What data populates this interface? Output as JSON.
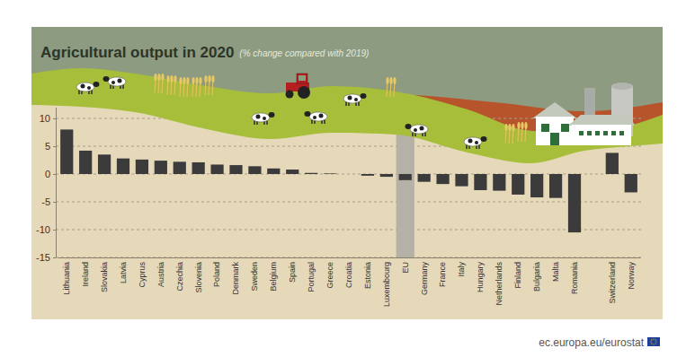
{
  "chart_data": {
    "type": "bar",
    "title": "Agricultural output in 2020",
    "subtitle": "(% change compared with 2019)",
    "source": "ec.europa.eu/eurostat",
    "categories": [
      "Lithuania",
      "Ireland",
      "Slovakia",
      "Latvia",
      "Cyprus",
      "Austria",
      "Czechia",
      "Slovenia",
      "Poland",
      "Denmark",
      "Sweden",
      "Belgium",
      "Spain",
      "Portugal",
      "Greece",
      "Croatia",
      "Estonia",
      "Luxembourg",
      "EU",
      "Germany",
      "France",
      "Italy",
      "Hungary",
      "Netherlands",
      "Finland",
      "Bulgaria",
      "Malta",
      "Romania",
      null,
      "Switzerland",
      "Norway"
    ],
    "values": [
      8,
      4.2,
      3.5,
      2.8,
      2.6,
      2.4,
      2.2,
      2.1,
      1.7,
      1.6,
      1.4,
      1,
      0.8,
      0.2,
      0.1,
      0,
      -0.3,
      -0.5,
      -1.1,
      -1.4,
      -1.8,
      -2.2,
      -2.9,
      -3,
      -3.7,
      -4.2,
      -4.3,
      -10.5,
      null,
      3.8,
      -3.3
    ],
    "color": "#3b3b3b",
    "ylim": [
      -15,
      12
    ],
    "yticks": [
      -15,
      -10,
      -5,
      0,
      5,
      10
    ],
    "grid": true
  }
}
